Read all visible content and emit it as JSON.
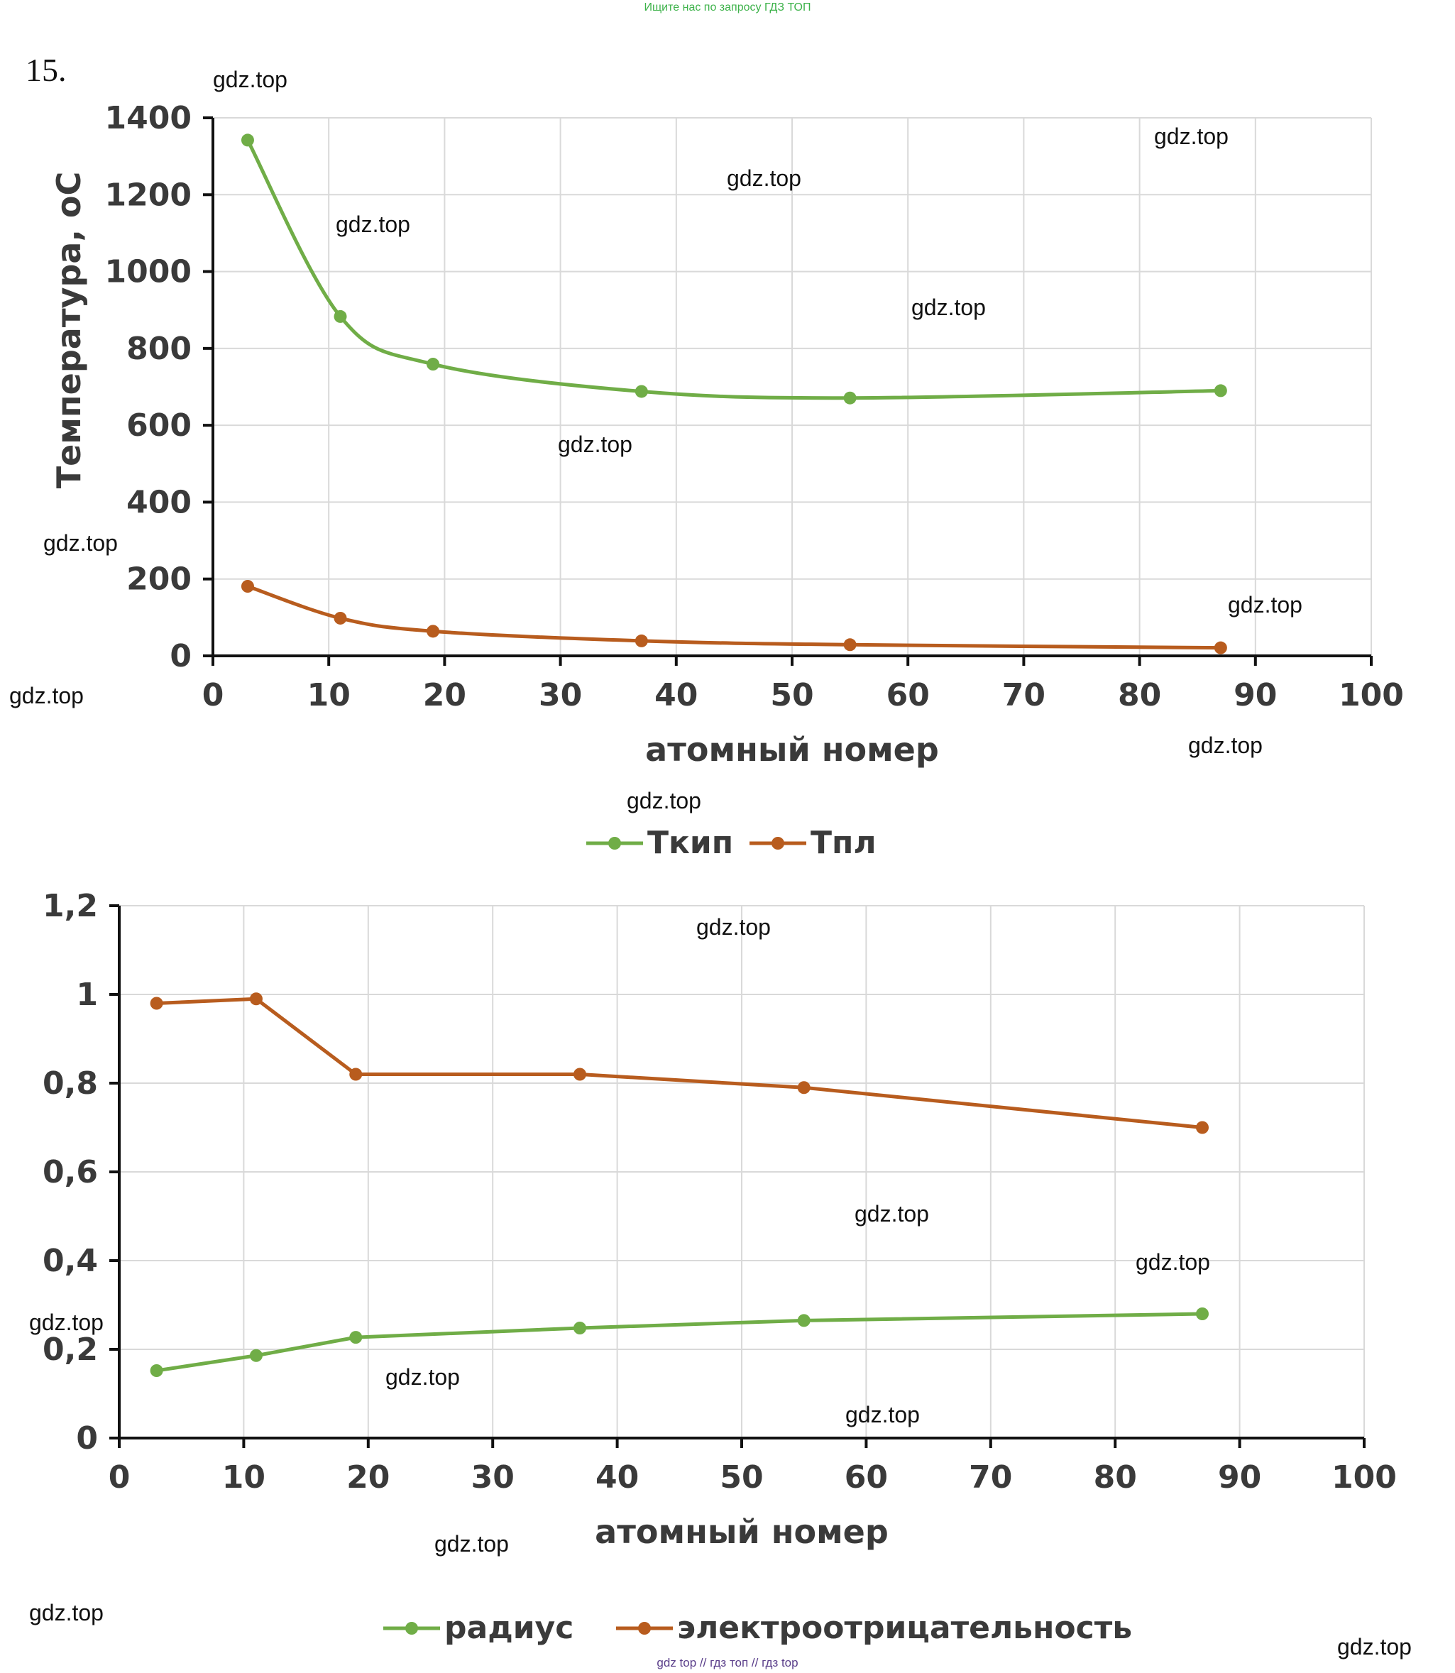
{
  "banner": "Ищите нас по запросу ГДЗ ТОП",
  "task_number": "15.",
  "footer": "gdz top  //  гдз топ  //  гдз top",
  "watermark_text": "gdz.top",
  "chart_data": [
    {
      "type": "line",
      "title": "",
      "xlabel": "атомный номер",
      "ylabel": "Температура, оС",
      "xlim": [
        0,
        100
      ],
      "ylim": [
        0,
        1400
      ],
      "xticks": [
        0,
        10,
        20,
        30,
        40,
        50,
        60,
        70,
        80,
        90,
        100
      ],
      "yticks": [
        0,
        200,
        400,
        600,
        800,
        1000,
        1200,
        1400
      ],
      "xtick_labels": [
        "0",
        "10",
        "20",
        "30",
        "40",
        "50",
        "60",
        "70",
        "80",
        "90",
        "100"
      ],
      "ytick_labels": [
        "0",
        "200",
        "400",
        "600",
        "800",
        "1000",
        "1200",
        "1400"
      ],
      "grid": true,
      "smooth": true,
      "x": [
        3,
        11,
        19,
        37,
        55,
        87
      ],
      "series": [
        {
          "name": "Ткип",
          "color": "#70ad47",
          "values": [
            1342,
            883,
            759,
            688,
            671,
            690
          ]
        },
        {
          "name": "Тпл",
          "color": "#b85c1e",
          "values": [
            181,
            98,
            64,
            39,
            29,
            21
          ]
        }
      ]
    },
    {
      "type": "line",
      "title": "",
      "xlabel": "атомный номер",
      "ylabel": "",
      "xlim": [
        0,
        100
      ],
      "ylim": [
        0,
        1.2
      ],
      "xticks": [
        0,
        10,
        20,
        30,
        40,
        50,
        60,
        70,
        80,
        90,
        100
      ],
      "yticks": [
        0,
        0.2,
        0.4,
        0.6,
        0.8,
        1.0,
        1.2
      ],
      "xtick_labels": [
        "0",
        "10",
        "20",
        "30",
        "40",
        "50",
        "60",
        "70",
        "80",
        "90",
        "100"
      ],
      "ytick_labels": [
        "0",
        "0,2",
        "0,4",
        "0,6",
        "0,8",
        "1",
        "1,2"
      ],
      "grid": true,
      "smooth": false,
      "x": [
        3,
        11,
        19,
        37,
        55,
        87
      ],
      "series": [
        {
          "name": "радиус",
          "color": "#70ad47",
          "values": [
            0.152,
            0.186,
            0.227,
            0.248,
            0.265,
            0.28
          ]
        },
        {
          "name": "электроотрицательность",
          "color": "#b85c1e",
          "values": [
            0.98,
            0.99,
            0.82,
            0.82,
            0.79,
            0.7
          ]
        }
      ]
    }
  ]
}
